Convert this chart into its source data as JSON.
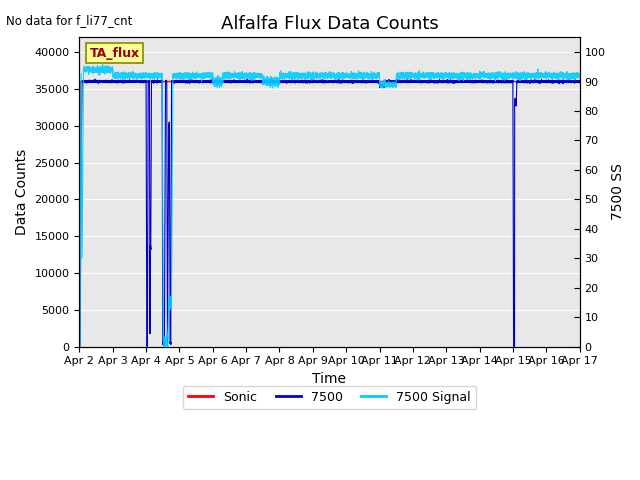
{
  "title": "Alfalfa Flux Data Counts",
  "top_left_text": "No data for f_li77_cnt",
  "xlabel": "Time",
  "ylabel": "Data Counts",
  "ylabel_right": "7500 SS",
  "ylim_left": [
    0,
    42000
  ],
  "ylim_right": [
    0,
    105
  ],
  "yticks_left": [
    0,
    5000,
    10000,
    15000,
    20000,
    25000,
    30000,
    35000,
    40000
  ],
  "yticks_right": [
    0,
    10,
    20,
    30,
    40,
    50,
    60,
    70,
    80,
    90,
    100
  ],
  "xtick_labels": [
    "Apr 2",
    "Apr 3",
    "Apr 4",
    "Apr 5",
    "Apr 6",
    "Apr 7",
    "Apr 8",
    "Apr 9",
    "Apr 10",
    "Apr 11",
    "Apr 12",
    "Apr 13",
    "Apr 14",
    "Apr 15",
    "Apr 16",
    "Apr 17"
  ],
  "bg_color": "#e8e8e8",
  "legend_box_text": "TA_flux",
  "legend_box_bg": "#ffff99",
  "legend_box_edge": "#888800",
  "sonic_color": "#ff0000",
  "flux7500_color": "#0000cc",
  "signal7500_color": "#00ccff",
  "title_fontsize": 13,
  "axis_label_fontsize": 10,
  "tick_fontsize": 8
}
